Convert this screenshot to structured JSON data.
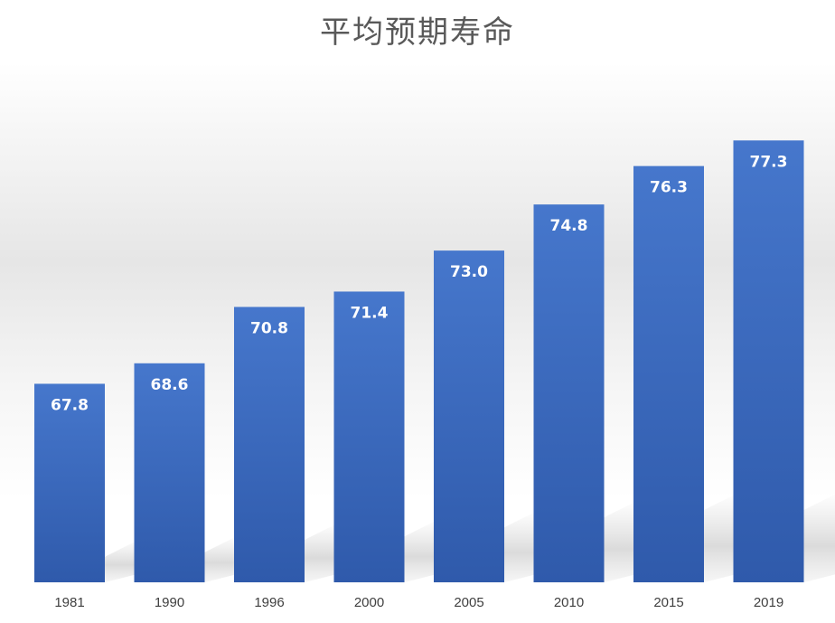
{
  "chart_data": {
    "type": "bar",
    "title": "平均预期寿命",
    "categories": [
      "1981",
      "1990",
      "1996",
      "2000",
      "2005",
      "2010",
      "2015",
      "2019"
    ],
    "values": [
      67.8,
      68.6,
      70.8,
      71.4,
      73.0,
      74.8,
      76.3,
      77.3
    ],
    "value_labels": [
      "67.8",
      "68.6",
      "70.8",
      "71.4",
      "73.0",
      "74.8",
      "76.3",
      "77.3"
    ],
    "xlabel": "",
    "ylabel": "",
    "y_axis_visible": false,
    "grid": false,
    "legend": "none",
    "data_label_position": "inside-top",
    "bar_color": "#3d6ec4",
    "bar_color_dark": "#2f5aab",
    "title_color": "#595959",
    "tick_color": "#404040"
  }
}
